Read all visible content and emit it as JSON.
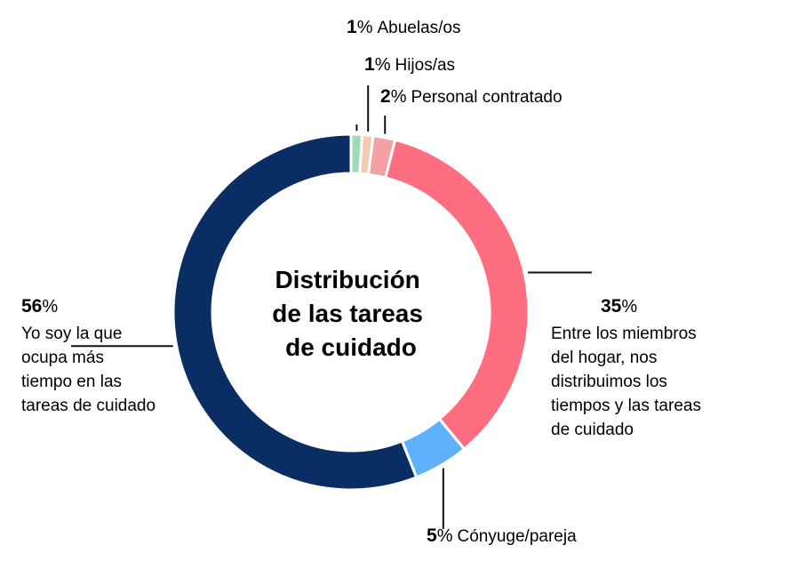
{
  "chart_data": {
    "type": "pie",
    "title": "Distribución de las tareas de cuidado",
    "title_lines": [
      "Distribución",
      "de las tareas",
      "de cuidado"
    ],
    "unit": "%",
    "slices": [
      {
        "value": 1,
        "label_lines": [
          "Abuelas/os"
        ],
        "color": "#9fd9b5"
      },
      {
        "value": 1,
        "label_lines": [
          "Hijos/as"
        ],
        "color": "#f3cbb3"
      },
      {
        "value": 2,
        "label_lines": [
          "Personal contratado"
        ],
        "color": "#f4a1a3"
      },
      {
        "value": 35,
        "label_lines": [
          "Entre los miembros",
          "del hogar, nos",
          "distribuimos los",
          "tiempos y las tareas",
          "de cuidado"
        ],
        "color": "#ff6e80"
      },
      {
        "value": 5,
        "label_lines": [
          "Cónyuge/pareja"
        ],
        "color": "#5eb2fb"
      },
      {
        "value": 56,
        "label_lines": [
          "Yo soy la que",
          "ocupa más",
          "tiempo en las",
          "tareas de cuidado"
        ],
        "color": "#0a2d63"
      }
    ]
  }
}
